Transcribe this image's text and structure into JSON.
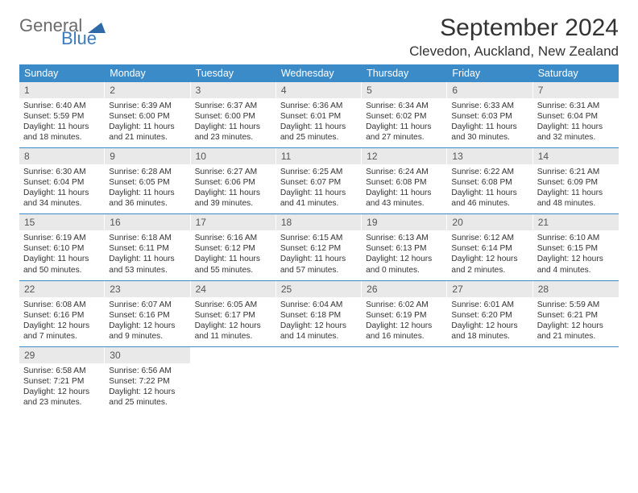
{
  "logo": {
    "word1": "General",
    "word2": "Blue"
  },
  "header": {
    "month_title": "September 2024",
    "location": "Clevedon, Auckland, New Zealand"
  },
  "colors": {
    "header_bg": "#3b8bc9",
    "daynum_bg": "#e9e9e9",
    "rule": "#3b8bc9",
    "logo_gray": "#6b6b6b",
    "logo_blue": "#3b7bbf"
  },
  "weekdays": [
    "Sunday",
    "Monday",
    "Tuesday",
    "Wednesday",
    "Thursday",
    "Friday",
    "Saturday"
  ],
  "weeks": [
    [
      {
        "n": "1",
        "sr": "Sunrise: 6:40 AM",
        "ss": "Sunset: 5:59 PM",
        "d1": "Daylight: 11 hours",
        "d2": "and 18 minutes."
      },
      {
        "n": "2",
        "sr": "Sunrise: 6:39 AM",
        "ss": "Sunset: 6:00 PM",
        "d1": "Daylight: 11 hours",
        "d2": "and 21 minutes."
      },
      {
        "n": "3",
        "sr": "Sunrise: 6:37 AM",
        "ss": "Sunset: 6:00 PM",
        "d1": "Daylight: 11 hours",
        "d2": "and 23 minutes."
      },
      {
        "n": "4",
        "sr": "Sunrise: 6:36 AM",
        "ss": "Sunset: 6:01 PM",
        "d1": "Daylight: 11 hours",
        "d2": "and 25 minutes."
      },
      {
        "n": "5",
        "sr": "Sunrise: 6:34 AM",
        "ss": "Sunset: 6:02 PM",
        "d1": "Daylight: 11 hours",
        "d2": "and 27 minutes."
      },
      {
        "n": "6",
        "sr": "Sunrise: 6:33 AM",
        "ss": "Sunset: 6:03 PM",
        "d1": "Daylight: 11 hours",
        "d2": "and 30 minutes."
      },
      {
        "n": "7",
        "sr": "Sunrise: 6:31 AM",
        "ss": "Sunset: 6:04 PM",
        "d1": "Daylight: 11 hours",
        "d2": "and 32 minutes."
      }
    ],
    [
      {
        "n": "8",
        "sr": "Sunrise: 6:30 AM",
        "ss": "Sunset: 6:04 PM",
        "d1": "Daylight: 11 hours",
        "d2": "and 34 minutes."
      },
      {
        "n": "9",
        "sr": "Sunrise: 6:28 AM",
        "ss": "Sunset: 6:05 PM",
        "d1": "Daylight: 11 hours",
        "d2": "and 36 minutes."
      },
      {
        "n": "10",
        "sr": "Sunrise: 6:27 AM",
        "ss": "Sunset: 6:06 PM",
        "d1": "Daylight: 11 hours",
        "d2": "and 39 minutes."
      },
      {
        "n": "11",
        "sr": "Sunrise: 6:25 AM",
        "ss": "Sunset: 6:07 PM",
        "d1": "Daylight: 11 hours",
        "d2": "and 41 minutes."
      },
      {
        "n": "12",
        "sr": "Sunrise: 6:24 AM",
        "ss": "Sunset: 6:08 PM",
        "d1": "Daylight: 11 hours",
        "d2": "and 43 minutes."
      },
      {
        "n": "13",
        "sr": "Sunrise: 6:22 AM",
        "ss": "Sunset: 6:08 PM",
        "d1": "Daylight: 11 hours",
        "d2": "and 46 minutes."
      },
      {
        "n": "14",
        "sr": "Sunrise: 6:21 AM",
        "ss": "Sunset: 6:09 PM",
        "d1": "Daylight: 11 hours",
        "d2": "and 48 minutes."
      }
    ],
    [
      {
        "n": "15",
        "sr": "Sunrise: 6:19 AM",
        "ss": "Sunset: 6:10 PM",
        "d1": "Daylight: 11 hours",
        "d2": "and 50 minutes."
      },
      {
        "n": "16",
        "sr": "Sunrise: 6:18 AM",
        "ss": "Sunset: 6:11 PM",
        "d1": "Daylight: 11 hours",
        "d2": "and 53 minutes."
      },
      {
        "n": "17",
        "sr": "Sunrise: 6:16 AM",
        "ss": "Sunset: 6:12 PM",
        "d1": "Daylight: 11 hours",
        "d2": "and 55 minutes."
      },
      {
        "n": "18",
        "sr": "Sunrise: 6:15 AM",
        "ss": "Sunset: 6:12 PM",
        "d1": "Daylight: 11 hours",
        "d2": "and 57 minutes."
      },
      {
        "n": "19",
        "sr": "Sunrise: 6:13 AM",
        "ss": "Sunset: 6:13 PM",
        "d1": "Daylight: 12 hours",
        "d2": "and 0 minutes."
      },
      {
        "n": "20",
        "sr": "Sunrise: 6:12 AM",
        "ss": "Sunset: 6:14 PM",
        "d1": "Daylight: 12 hours",
        "d2": "and 2 minutes."
      },
      {
        "n": "21",
        "sr": "Sunrise: 6:10 AM",
        "ss": "Sunset: 6:15 PM",
        "d1": "Daylight: 12 hours",
        "d2": "and 4 minutes."
      }
    ],
    [
      {
        "n": "22",
        "sr": "Sunrise: 6:08 AM",
        "ss": "Sunset: 6:16 PM",
        "d1": "Daylight: 12 hours",
        "d2": "and 7 minutes."
      },
      {
        "n": "23",
        "sr": "Sunrise: 6:07 AM",
        "ss": "Sunset: 6:16 PM",
        "d1": "Daylight: 12 hours",
        "d2": "and 9 minutes."
      },
      {
        "n": "24",
        "sr": "Sunrise: 6:05 AM",
        "ss": "Sunset: 6:17 PM",
        "d1": "Daylight: 12 hours",
        "d2": "and 11 minutes."
      },
      {
        "n": "25",
        "sr": "Sunrise: 6:04 AM",
        "ss": "Sunset: 6:18 PM",
        "d1": "Daylight: 12 hours",
        "d2": "and 14 minutes."
      },
      {
        "n": "26",
        "sr": "Sunrise: 6:02 AM",
        "ss": "Sunset: 6:19 PM",
        "d1": "Daylight: 12 hours",
        "d2": "and 16 minutes."
      },
      {
        "n": "27",
        "sr": "Sunrise: 6:01 AM",
        "ss": "Sunset: 6:20 PM",
        "d1": "Daylight: 12 hours",
        "d2": "and 18 minutes."
      },
      {
        "n": "28",
        "sr": "Sunrise: 5:59 AM",
        "ss": "Sunset: 6:21 PM",
        "d1": "Daylight: 12 hours",
        "d2": "and 21 minutes."
      }
    ],
    [
      {
        "n": "29",
        "sr": "Sunrise: 6:58 AM",
        "ss": "Sunset: 7:21 PM",
        "d1": "Daylight: 12 hours",
        "d2": "and 23 minutes."
      },
      {
        "n": "30",
        "sr": "Sunrise: 6:56 AM",
        "ss": "Sunset: 7:22 PM",
        "d1": "Daylight: 12 hours",
        "d2": "and 25 minutes."
      },
      null,
      null,
      null,
      null,
      null
    ]
  ]
}
